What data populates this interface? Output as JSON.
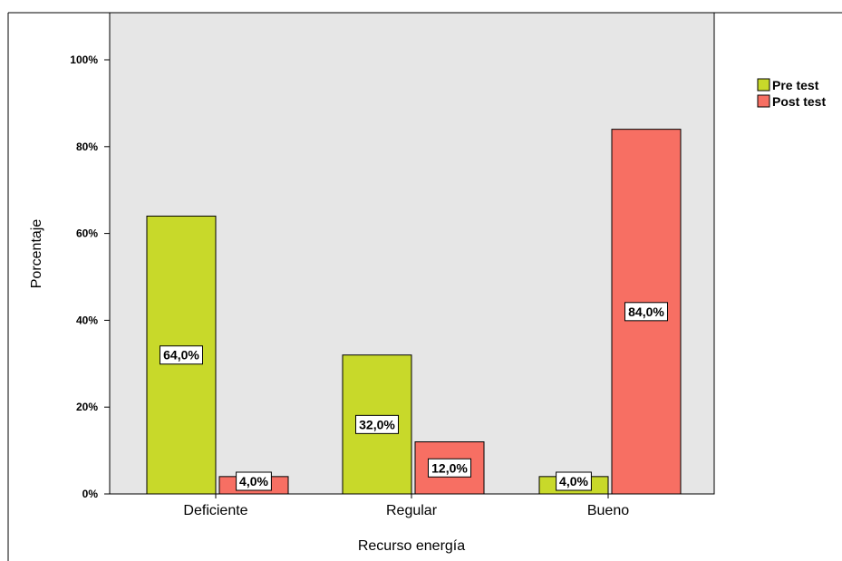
{
  "chart_data": {
    "type": "bar",
    "categories": [
      "Deficiente",
      "Regular",
      "Bueno"
    ],
    "series": [
      {
        "name": "Pre test",
        "values": [
          64.0,
          32.0,
          4.0
        ],
        "labels": [
          "64,0%",
          "32,0%",
          "4,0%"
        ],
        "color": "#c8d92a"
      },
      {
        "name": "Post test",
        "values": [
          4.0,
          12.0,
          84.0
        ],
        "labels": [
          "4,0%",
          "12,0%",
          "84,0%"
        ],
        "color": "#f76f63"
      }
    ],
    "xlabel": "Recurso energía",
    "ylabel": "Porcentaje",
    "ylim": [
      0,
      100
    ],
    "yticks": [
      0,
      20,
      40,
      60,
      80,
      100
    ],
    "ytick_labels": [
      "0%",
      "20%",
      "40%",
      "60%",
      "80%",
      "100%"
    ],
    "plot_background": "#e6e6e6",
    "grid": false,
    "legend_position": "top-right"
  }
}
